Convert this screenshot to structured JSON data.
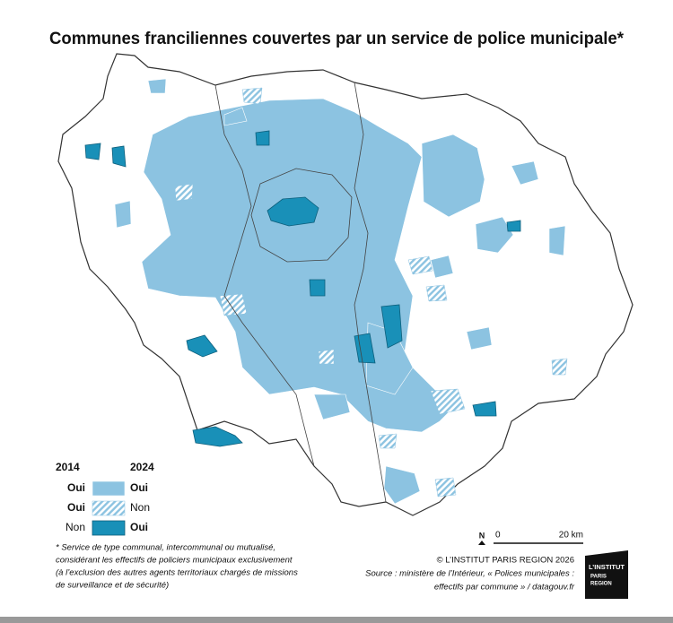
{
  "title": "Communes franciliennes couvertes par un service de police municipale*",
  "legend": {
    "headers": [
      "2014",
      "2024"
    ],
    "rows": [
      {
        "left": "Oui",
        "right": "Oui"
      },
      {
        "left": "Oui",
        "right": "Non"
      },
      {
        "left": "Non",
        "right": "Oui"
      }
    ]
  },
  "north": "N",
  "scale": {
    "start": "0",
    "end": "20 km"
  },
  "footnote": [
    "* Service de type communal, intercommunal ou mutualisé,",
    "considérant les effectifs de policiers municipaux exclusivement",
    "(à l’exclusion des autres agents territoriaux chargés de missions",
    "de surveillance et de sécurité)"
  ],
  "credit": "© L’INSTITUT PARIS REGION 2026",
  "source": [
    "Source : ministère de l’Intérieur, « Polices municipales :",
    "effectifs par commune » / datagouv.fr"
  ],
  "logo": [
    "L’INSTITUT",
    "PARIS",
    "REGION"
  ]
}
